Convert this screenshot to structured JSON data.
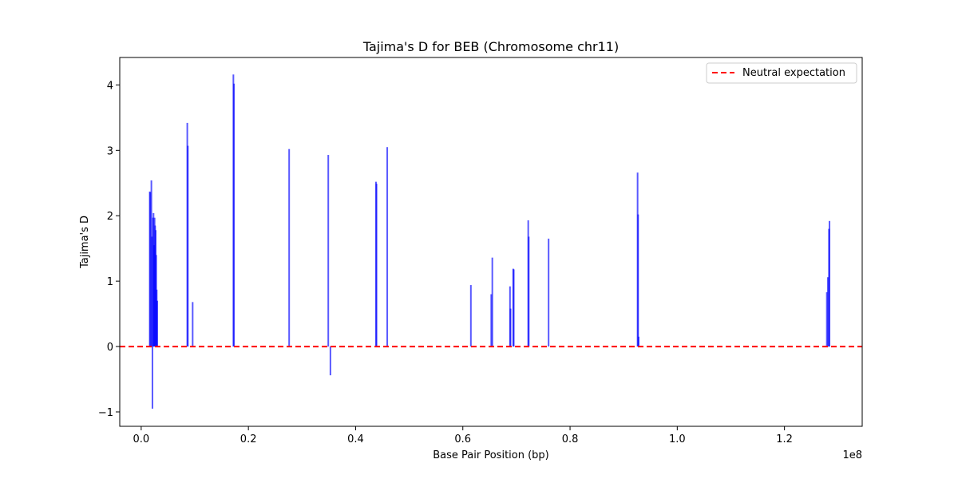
{
  "chart_data": {
    "type": "bar",
    "title": "Tajima's D for BEB (Chromosome chr11)",
    "xlabel": "Base Pair Position (bp)",
    "ylabel": "Tajima's D",
    "x_scale_label": "1e8",
    "xlim": [
      -0.04,
      1.345
    ],
    "ylim": [
      -1.22,
      4.42
    ],
    "x_ticks": [
      0.0,
      0.2,
      0.4,
      0.6,
      0.8,
      1.0,
      1.2
    ],
    "x_tick_labels": [
      "0.0",
      "0.2",
      "0.4",
      "0.6",
      "0.8",
      "1.0",
      "1.2"
    ],
    "y_ticks": [
      -1,
      0,
      1,
      2,
      3,
      4
    ],
    "y_tick_labels": [
      "−1",
      "0",
      "1",
      "2",
      "3",
      "4"
    ],
    "reference_line": {
      "y": 0,
      "label": "Neutral expectation",
      "color": "#ff0000",
      "style": "dashed"
    },
    "legend_position": "top-right",
    "grid": false,
    "bar_color": "#0000ff",
    "series": [
      {
        "x": [
          0.016,
          0.017,
          0.019,
          0.02,
          0.021,
          0.022,
          0.023,
          0.024,
          0.025,
          0.026,
          0.027,
          0.028,
          0.029,
          0.03,
          0.086,
          0.087,
          0.096,
          0.172,
          0.173,
          0.276,
          0.349,
          0.353,
          0.438,
          0.439,
          0.459,
          0.615,
          0.653,
          0.655,
          0.688,
          0.689,
          0.694,
          0.695,
          0.722,
          0.723,
          0.76,
          0.926,
          0.927,
          0.928,
          1.279,
          1.281,
          1.283,
          1.284
        ],
        "values": [
          2.37,
          2.36,
          2.54,
          1.68,
          -0.95,
          1.97,
          2.04,
          1.55,
          1.97,
          1.85,
          1.78,
          1.4,
          0.87,
          0.7,
          3.42,
          3.07,
          0.68,
          4.16,
          4.02,
          3.02,
          2.93,
          -0.44,
          2.52,
          2.49,
          3.05,
          0.94,
          0.8,
          1.36,
          0.92,
          0.58,
          1.19,
          1.18,
          1.93,
          1.68,
          1.65,
          2.66,
          2.02,
          0.15,
          0.83,
          1.06,
          1.8,
          1.92
        ]
      }
    ]
  }
}
